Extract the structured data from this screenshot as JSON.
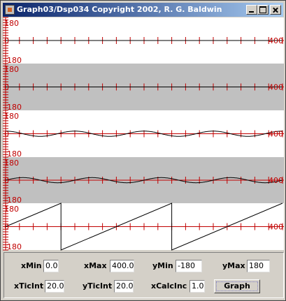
{
  "window": {
    "title": "Graph03/Dsp034 Copyright 2002, R. G. Baldwin",
    "minimize_icon": "minimize-icon",
    "maximize_icon": "maximize-icon",
    "close_icon": "close-icon"
  },
  "colors": {
    "axis": "#c00000",
    "curve": "#000000",
    "plot_bg_light": "#ffffff",
    "plot_bg_dark": "#c0c0c0",
    "titlebar_start": "#0a246a",
    "titlebar_end": "#a6caf0"
  },
  "controls": {
    "xMin": {
      "label": "xMin",
      "value": "0.0"
    },
    "xMax": {
      "label": "xMax",
      "value": "400.0"
    },
    "yMin": {
      "label": "yMin",
      "value": "-180"
    },
    "yMax": {
      "label": "yMax",
      "value": "180"
    },
    "xTicInt": {
      "label": "xTicInt",
      "value": "20.0"
    },
    "yTicInt": {
      "label": "yTicInt",
      "value": "20.0"
    },
    "xCalcInc": {
      "label": "xCalcInc",
      "value": "1.0"
    },
    "graph_button": "Graph"
  },
  "chart_data": [
    {
      "type": "line",
      "plot_background": "light",
      "function": "zero",
      "x_range": [
        0,
        400
      ],
      "y_range": [
        -180,
        180
      ],
      "x_tick_interval": 20,
      "y_tick_interval": 20,
      "labels": {
        "y_max": "180",
        "y_min": "-180",
        "origin": "0",
        "x_max": "400"
      }
    },
    {
      "type": "line",
      "plot_background": "dark",
      "function": "zero",
      "x_range": [
        0,
        400
      ],
      "y_range": [
        -180,
        180
      ],
      "x_tick_interval": 20,
      "y_tick_interval": 20,
      "labels": {
        "y_max": "180",
        "y_min": "-180",
        "origin": "0",
        "x_max": "400"
      }
    },
    {
      "type": "line",
      "plot_background": "light",
      "function": "cosine",
      "amplitude": 20,
      "period": 100,
      "x_range": [
        0,
        400
      ],
      "y_range": [
        -180,
        180
      ],
      "x_tick_interval": 20,
      "y_tick_interval": 20,
      "labels": {
        "y_max": "180",
        "y_min": "-180",
        "origin": "0",
        "x_max": "400"
      }
    },
    {
      "type": "line",
      "plot_background": "dark",
      "function": "sine",
      "amplitude": 20,
      "period": 100,
      "x_range": [
        0,
        400
      ],
      "y_range": [
        -180,
        180
      ],
      "x_tick_interval": 20,
      "y_tick_interval": 20,
      "labels": {
        "y_max": "180",
        "y_min": "-180",
        "origin": "0",
        "x_max": "400"
      }
    },
    {
      "type": "line",
      "plot_background": "light",
      "function": "sawtooth",
      "x": [
        0,
        80,
        80,
        240,
        240,
        400
      ],
      "y": [
        0,
        180,
        -180,
        180,
        -180,
        180
      ],
      "x_range": [
        0,
        400
      ],
      "y_range": [
        -180,
        180
      ],
      "x_tick_interval": 20,
      "y_tick_interval": 20,
      "labels": {
        "y_max": "180",
        "y_min": "-180",
        "origin": "0",
        "x_max": "400"
      }
    }
  ]
}
